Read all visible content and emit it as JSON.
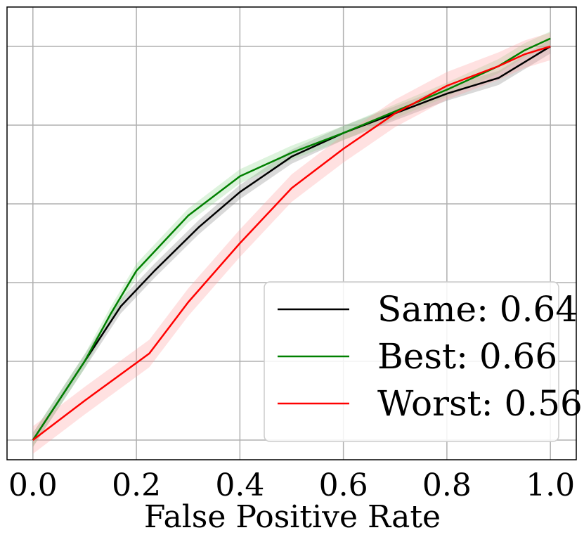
{
  "chart_data": {
    "type": "line",
    "title": "",
    "xlabel": "False Positive Rate",
    "ylabel": "",
    "xlim": [
      -0.05,
      1.05
    ],
    "ylim": [
      -0.05,
      1.1
    ],
    "x_ticks": [
      "0.0",
      "0.2",
      "0.4",
      "0.6",
      "0.8",
      "1.0"
    ],
    "x_tick_values": [
      0.0,
      0.2,
      0.4,
      0.6,
      0.8,
      1.0
    ],
    "y_tick_values": [
      0.0,
      0.2,
      0.4,
      0.6,
      0.8,
      1.0
    ],
    "y_ticks_labeled": false,
    "grid": true,
    "legend_position": "lower-right",
    "series": [
      {
        "name": "Same",
        "label": "Same: 0.64",
        "auc": 0.64,
        "color": "#000000",
        "band_color": "#808080",
        "x": [
          0.0,
          0.1,
          0.17,
          0.235,
          0.32,
          0.4,
          0.5,
          0.6,
          0.7,
          0.8,
          0.9,
          0.95,
          1.0
        ],
        "y": [
          0.0,
          0.2,
          0.34,
          0.43,
          0.54,
          0.63,
          0.72,
          0.78,
          0.83,
          0.88,
          0.92,
          0.96,
          1.0
        ],
        "band_halfwidth": 0.018
      },
      {
        "name": "Best",
        "label": "Best: 0.66",
        "auc": 0.66,
        "color": "#008000",
        "band_color": "#90d890",
        "x": [
          0.0,
          0.1,
          0.15,
          0.2,
          0.3,
          0.4,
          0.5,
          0.6,
          0.7,
          0.8,
          0.9,
          0.95,
          1.0
        ],
        "y": [
          0.0,
          0.2,
          0.32,
          0.43,
          0.57,
          0.67,
          0.73,
          0.78,
          0.835,
          0.89,
          0.95,
          0.99,
          1.02
        ],
        "band_halfwidth": 0.018
      },
      {
        "name": "Worst",
        "label": "Worst: 0.56",
        "auc": 0.56,
        "color": "#ff0000",
        "band_color": "#ff9a9a",
        "x": [
          0.0,
          0.1,
          0.225,
          0.3,
          0.4,
          0.5,
          0.6,
          0.7,
          0.8,
          0.9,
          0.95,
          1.0
        ],
        "y": [
          0.0,
          0.1,
          0.22,
          0.35,
          0.5,
          0.64,
          0.74,
          0.83,
          0.9,
          0.95,
          0.98,
          1.0
        ],
        "band_halfwidth": 0.035
      }
    ]
  }
}
